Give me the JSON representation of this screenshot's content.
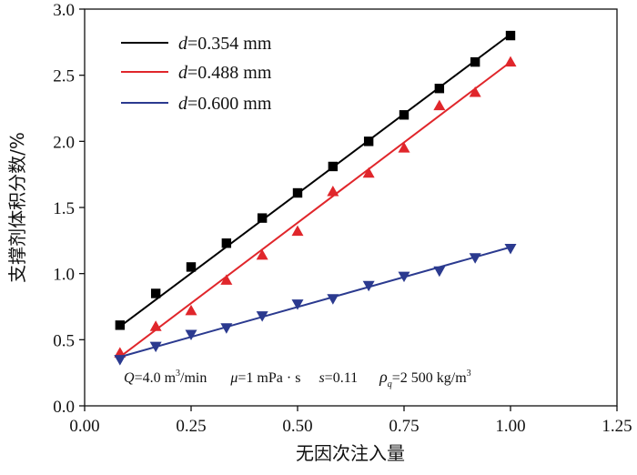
{
  "chart_data": {
    "type": "line",
    "title": "",
    "xlabel": "无因次注入量",
    "ylabel": "支撑剂体积分数/%",
    "xlim": [
      0,
      1.25
    ],
    "ylim": [
      0,
      3.0
    ],
    "xticks": [
      "0.00",
      "0.25",
      "0.50",
      "0.75",
      "1.00",
      "1.25"
    ],
    "yticks": [
      "0.0",
      "0.5",
      "1.0",
      "1.5",
      "2.0",
      "2.5",
      "3.0"
    ],
    "grid": false,
    "legend_position": "top-left",
    "series": [
      {
        "name": "0.354 mm",
        "label_var": "d",
        "label_eq": "=",
        "color": "#000000",
        "marker": "square",
        "x": [
          0.083,
          0.167,
          0.25,
          0.333,
          0.417,
          0.5,
          0.583,
          0.667,
          0.75,
          0.833,
          0.917,
          1.0
        ],
        "y": [
          0.61,
          0.85,
          1.05,
          1.23,
          1.42,
          1.61,
          1.81,
          2.0,
          2.2,
          2.4,
          2.6,
          2.8
        ],
        "fit": [
          [
            0.083,
            0.6
          ],
          [
            1.0,
            2.81
          ]
        ]
      },
      {
        "name": "0.488 mm",
        "label_var": "d",
        "label_eq": "=",
        "color": "#e0262b",
        "marker": "triangle-up",
        "x": [
          0.083,
          0.167,
          0.25,
          0.333,
          0.417,
          0.5,
          0.583,
          0.667,
          0.75,
          0.833,
          0.917,
          1.0
        ],
        "y": [
          0.4,
          0.6,
          0.72,
          0.95,
          1.14,
          1.32,
          1.62,
          1.76,
          1.95,
          2.27,
          2.37,
          2.6
        ],
        "fit": [
          [
            0.083,
            0.37
          ],
          [
            1.0,
            2.6
          ]
        ]
      },
      {
        "name": "0.600 mm",
        "label_var": "d",
        "label_eq": "=",
        "color": "#2b3a8f",
        "marker": "triangle-down",
        "x": [
          0.083,
          0.167,
          0.25,
          0.333,
          0.417,
          0.5,
          0.583,
          0.667,
          0.75,
          0.833,
          0.917,
          1.0
        ],
        "y": [
          0.35,
          0.45,
          0.54,
          0.59,
          0.68,
          0.77,
          0.81,
          0.91,
          0.98,
          1.02,
          1.12,
          1.19
        ],
        "fit": [
          [
            0.083,
            0.37
          ],
          [
            1.0,
            1.2
          ]
        ]
      }
    ],
    "annotation": {
      "q_var": "Q",
      "q_val": "=4.0 m",
      "q_sup": "3",
      "q_unit": "/min",
      "mu_var": "μ",
      "mu_val": "=1 mPa · s",
      "s_var": "s",
      "s_val": "=0.11",
      "rho_var": "ρ",
      "rho_sub": "q",
      "rho_val": "=2 500 kg/m",
      "rho_sup": "3"
    }
  }
}
